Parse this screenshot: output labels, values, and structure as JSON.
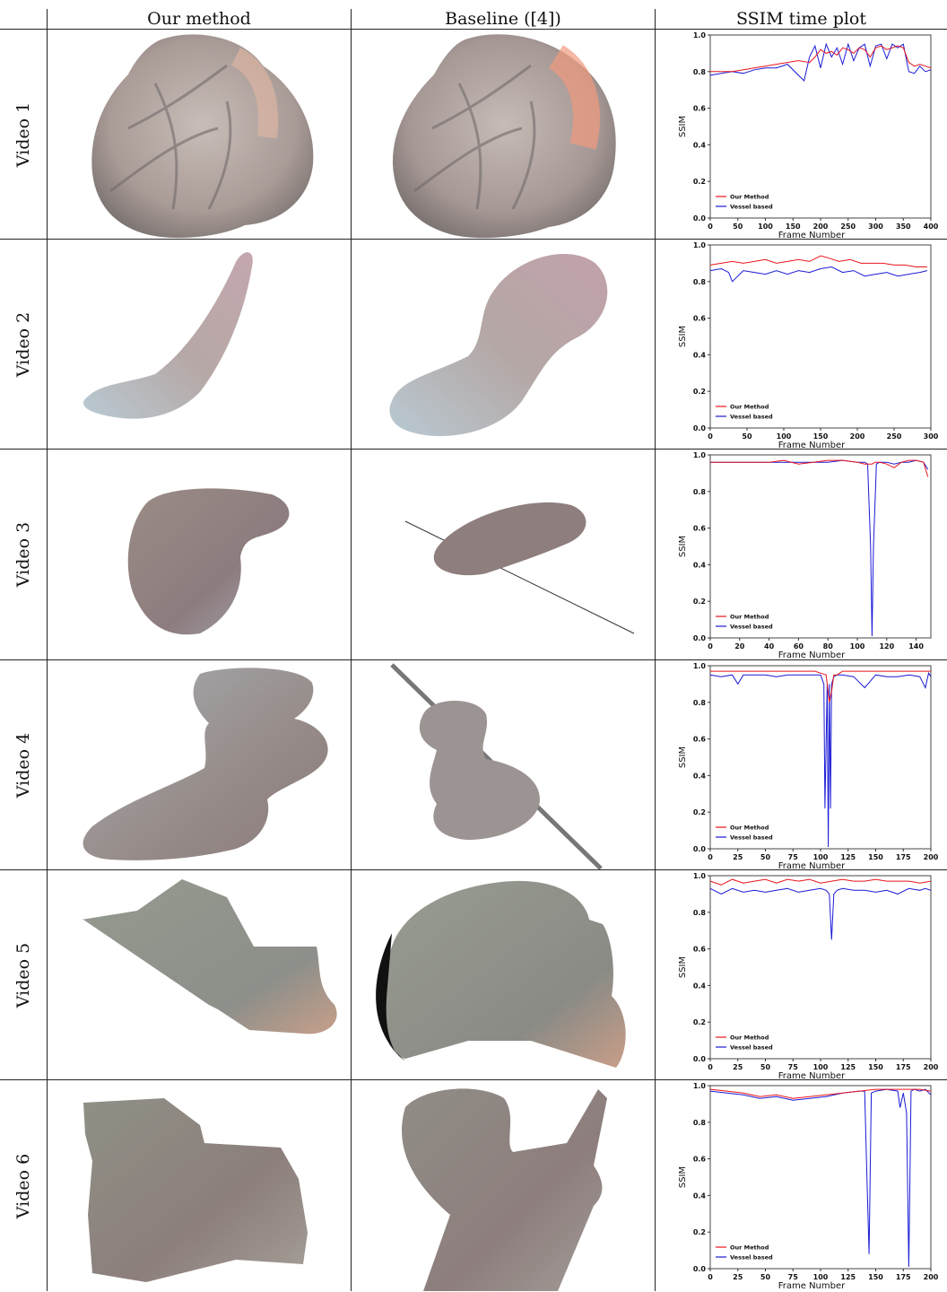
{
  "table": {
    "headers": [
      "Our method",
      "Baseline ([4])",
      "SSIM time plot"
    ],
    "rows": [
      {
        "label": "Video 1"
      },
      {
        "label": "Video 2"
      },
      {
        "label": "Video 3"
      },
      {
        "label": "Video 4"
      },
      {
        "label": "Video 5"
      },
      {
        "label": "Video 6"
      }
    ]
  },
  "colors": {
    "our_method": "#e8141b",
    "vessel_based": "#1a1ad6",
    "tissue": "#b9a8a4",
    "tissue_dark": "#6e6464"
  },
  "chart_data": [
    {
      "type": "line",
      "ylabel": "SSIM",
      "xlabel": "Frame Number",
      "xlim": [
        0,
        400
      ],
      "ylim": [
        0,
        1.0
      ],
      "xticks": [
        0,
        50,
        100,
        150,
        200,
        250,
        300,
        350,
        400
      ],
      "yticks": [
        0.0,
        0.2,
        0.4,
        0.6,
        0.8,
        1.0
      ],
      "legend": [
        "Our Method",
        "Vessel based"
      ],
      "legend_position": "lower-left",
      "series": [
        {
          "name": "Our Method",
          "x": [
            0,
            20,
            40,
            60,
            80,
            100,
            120,
            140,
            160,
            180,
            190,
            200,
            210,
            220,
            230,
            240,
            250,
            260,
            270,
            280,
            290,
            300,
            310,
            320,
            330,
            340,
            350,
            360,
            370,
            380,
            390,
            400
          ],
          "y": [
            0.8,
            0.8,
            0.8,
            0.81,
            0.82,
            0.83,
            0.84,
            0.85,
            0.86,
            0.85,
            0.88,
            0.92,
            0.9,
            0.91,
            0.89,
            0.93,
            0.92,
            0.9,
            0.93,
            0.92,
            0.88,
            0.93,
            0.94,
            0.92,
            0.93,
            0.94,
            0.93,
            0.85,
            0.83,
            0.84,
            0.83,
            0.82
          ]
        },
        {
          "name": "Vessel based",
          "x": [
            0,
            20,
            40,
            60,
            80,
            100,
            120,
            140,
            160,
            170,
            180,
            190,
            200,
            210,
            220,
            230,
            240,
            250,
            260,
            270,
            280,
            290,
            300,
            310,
            320,
            330,
            340,
            350,
            360,
            370,
            380,
            390,
            400
          ],
          "y": [
            0.78,
            0.79,
            0.8,
            0.79,
            0.81,
            0.82,
            0.82,
            0.84,
            0.78,
            0.75,
            0.88,
            0.94,
            0.82,
            0.95,
            0.88,
            0.93,
            0.84,
            0.95,
            0.86,
            0.93,
            0.95,
            0.83,
            0.94,
            0.95,
            0.87,
            0.95,
            0.93,
            0.95,
            0.8,
            0.79,
            0.83,
            0.8,
            0.81
          ]
        }
      ]
    },
    {
      "type": "line",
      "ylabel": "SSIM",
      "xlabel": "Frame Number",
      "xlim": [
        0,
        300
      ],
      "ylim": [
        0,
        1.0
      ],
      "xticks": [
        0,
        50,
        100,
        150,
        200,
        250,
        300
      ],
      "yticks": [
        0.0,
        0.2,
        0.4,
        0.6,
        0.8,
        1.0
      ],
      "legend": [
        "Our Method",
        "Vessel based"
      ],
      "legend_position": "lower-left",
      "series": [
        {
          "name": "Our Method",
          "x": [
            0,
            15,
            30,
            45,
            60,
            75,
            90,
            105,
            120,
            135,
            150,
            160,
            175,
            190,
            205,
            220,
            235,
            250,
            265,
            280,
            295
          ],
          "y": [
            0.89,
            0.9,
            0.91,
            0.9,
            0.91,
            0.92,
            0.9,
            0.91,
            0.92,
            0.91,
            0.94,
            0.93,
            0.91,
            0.92,
            0.9,
            0.9,
            0.9,
            0.89,
            0.89,
            0.88,
            0.88
          ]
        },
        {
          "name": "Vessel based",
          "x": [
            0,
            15,
            25,
            30,
            45,
            60,
            75,
            90,
            105,
            120,
            135,
            150,
            165,
            180,
            195,
            210,
            225,
            240,
            255,
            270,
            285,
            295
          ],
          "y": [
            0.86,
            0.87,
            0.85,
            0.8,
            0.86,
            0.85,
            0.84,
            0.86,
            0.84,
            0.86,
            0.85,
            0.87,
            0.88,
            0.85,
            0.86,
            0.83,
            0.84,
            0.85,
            0.83,
            0.84,
            0.85,
            0.86
          ]
        }
      ]
    },
    {
      "type": "line",
      "ylabel": "SSIM",
      "xlabel": "Frame Number",
      "xlim": [
        0,
        150
      ],
      "ylim": [
        0,
        1.0
      ],
      "xticks": [
        0,
        20,
        40,
        60,
        80,
        100,
        120,
        140
      ],
      "yticks": [
        0.0,
        0.2,
        0.4,
        0.6,
        0.8,
        1.0
      ],
      "legend": [
        "Our Method",
        "Vessel based"
      ],
      "legend_position": "lower-left",
      "series": [
        {
          "name": "Our Method",
          "x": [
            0,
            10,
            20,
            30,
            40,
            50,
            60,
            70,
            80,
            90,
            100,
            105,
            108,
            110,
            112,
            115,
            120,
            125,
            130,
            135,
            140,
            145,
            148
          ],
          "y": [
            0.96,
            0.96,
            0.96,
            0.96,
            0.96,
            0.97,
            0.95,
            0.96,
            0.97,
            0.97,
            0.96,
            0.95,
            0.95,
            0.95,
            0.96,
            0.96,
            0.95,
            0.93,
            0.96,
            0.97,
            0.97,
            0.96,
            0.88
          ]
        },
        {
          "name": "Vessel based",
          "x": [
            0,
            10,
            20,
            30,
            40,
            50,
            60,
            70,
            80,
            90,
            100,
            105,
            107,
            109,
            110,
            111,
            113,
            115,
            120,
            125,
            130,
            135,
            140,
            145,
            148
          ],
          "y": [
            0.96,
            0.96,
            0.96,
            0.96,
            0.96,
            0.96,
            0.96,
            0.96,
            0.96,
            0.97,
            0.96,
            0.96,
            0.95,
            0.5,
            0.01,
            0.5,
            0.95,
            0.96,
            0.96,
            0.95,
            0.96,
            0.96,
            0.97,
            0.96,
            0.92
          ]
        }
      ]
    },
    {
      "type": "line",
      "ylabel": "SSIM",
      "xlabel": "Frame Number",
      "xlim": [
        0,
        200
      ],
      "ylim": [
        0,
        1.0
      ],
      "xticks": [
        0,
        25,
        50,
        75,
        100,
        125,
        150,
        175,
        200
      ],
      "yticks": [
        0.0,
        0.2,
        0.4,
        0.6,
        0.8,
        1.0
      ],
      "legend": [
        "Our Method",
        "Vessel based"
      ],
      "legend_position": "lower-left",
      "series": [
        {
          "name": "Our Method",
          "x": [
            0,
            20,
            40,
            60,
            80,
            95,
            100,
            105,
            108,
            110,
            112,
            115,
            120,
            140,
            160,
            180,
            200
          ],
          "y": [
            0.97,
            0.97,
            0.97,
            0.97,
            0.97,
            0.97,
            0.96,
            0.95,
            0.8,
            0.86,
            0.95,
            0.95,
            0.97,
            0.97,
            0.97,
            0.97,
            0.97
          ]
        },
        {
          "name": "Vessel based",
          "x": [
            0,
            10,
            20,
            25,
            30,
            40,
            50,
            60,
            70,
            80,
            90,
            100,
            103,
            104,
            106,
            107,
            108,
            109,
            110,
            112,
            115,
            120,
            130,
            140,
            150,
            160,
            170,
            180,
            190,
            195,
            198,
            200
          ],
          "y": [
            0.95,
            0.94,
            0.95,
            0.9,
            0.95,
            0.95,
            0.95,
            0.94,
            0.95,
            0.95,
            0.95,
            0.95,
            0.9,
            0.22,
            0.9,
            0.01,
            0.9,
            0.22,
            0.9,
            0.94,
            0.95,
            0.95,
            0.94,
            0.88,
            0.95,
            0.94,
            0.94,
            0.95,
            0.94,
            0.88,
            0.96,
            0.94
          ]
        }
      ]
    },
    {
      "type": "line",
      "ylabel": "SSIM",
      "xlabel": "Frame Number",
      "xlim": [
        0,
        200
      ],
      "ylim": [
        0,
        1.0
      ],
      "xticks": [
        0,
        25,
        50,
        75,
        100,
        125,
        150,
        175,
        200
      ],
      "yticks": [
        0.0,
        0.2,
        0.4,
        0.6,
        0.8,
        1.0
      ],
      "legend": [
        "Our Method",
        "Vessel based"
      ],
      "legend_position": "lower-left",
      "series": [
        {
          "name": "Our Method",
          "x": [
            0,
            10,
            20,
            30,
            40,
            50,
            60,
            70,
            80,
            90,
            100,
            110,
            120,
            130,
            140,
            150,
            160,
            170,
            180,
            190,
            200
          ],
          "y": [
            0.97,
            0.95,
            0.98,
            0.96,
            0.97,
            0.98,
            0.96,
            0.98,
            0.97,
            0.98,
            0.96,
            0.97,
            0.98,
            0.97,
            0.97,
            0.98,
            0.97,
            0.97,
            0.97,
            0.96,
            0.97
          ]
        },
        {
          "name": "Vessel based",
          "x": [
            0,
            10,
            20,
            30,
            40,
            50,
            60,
            70,
            80,
            90,
            100,
            105,
            108,
            110,
            112,
            115,
            120,
            130,
            140,
            150,
            160,
            170,
            180,
            190,
            195,
            200
          ],
          "y": [
            0.93,
            0.9,
            0.93,
            0.91,
            0.92,
            0.91,
            0.92,
            0.93,
            0.91,
            0.92,
            0.93,
            0.92,
            0.9,
            0.65,
            0.9,
            0.92,
            0.93,
            0.92,
            0.92,
            0.91,
            0.92,
            0.9,
            0.93,
            0.92,
            0.93,
            0.92
          ]
        }
      ]
    },
    {
      "type": "line",
      "ylabel": "SSIM",
      "xlabel": "Frame Number",
      "xlim": [
        0,
        200
      ],
      "ylim": [
        0,
        1.0
      ],
      "xticks": [
        0,
        25,
        50,
        75,
        100,
        125,
        150,
        175,
        200
      ],
      "yticks": [
        0.0,
        0.2,
        0.4,
        0.6,
        0.8,
        1.0
      ],
      "legend": [
        "Our Method",
        "Vessel based"
      ],
      "legend_position": "lower-left",
      "series": [
        {
          "name": "Our Method",
          "x": [
            0,
            15,
            30,
            45,
            60,
            75,
            90,
            105,
            120,
            135,
            150,
            160,
            170,
            180,
            190,
            200
          ],
          "y": [
            0.98,
            0.97,
            0.96,
            0.94,
            0.95,
            0.93,
            0.94,
            0.95,
            0.96,
            0.97,
            0.98,
            0.98,
            0.98,
            0.98,
            0.98,
            0.97
          ]
        },
        {
          "name": "Vessel based",
          "x": [
            0,
            15,
            30,
            45,
            60,
            75,
            90,
            105,
            120,
            135,
            140,
            142,
            144,
            146,
            150,
            160,
            170,
            172,
            175,
            178,
            180,
            182,
            185,
            190,
            195,
            200
          ],
          "y": [
            0.97,
            0.96,
            0.95,
            0.93,
            0.94,
            0.92,
            0.93,
            0.94,
            0.96,
            0.97,
            0.97,
            0.5,
            0.08,
            0.96,
            0.97,
            0.98,
            0.97,
            0.88,
            0.96,
            0.85,
            0.01,
            0.97,
            0.98,
            0.97,
            0.98,
            0.95
          ]
        }
      ]
    }
  ]
}
